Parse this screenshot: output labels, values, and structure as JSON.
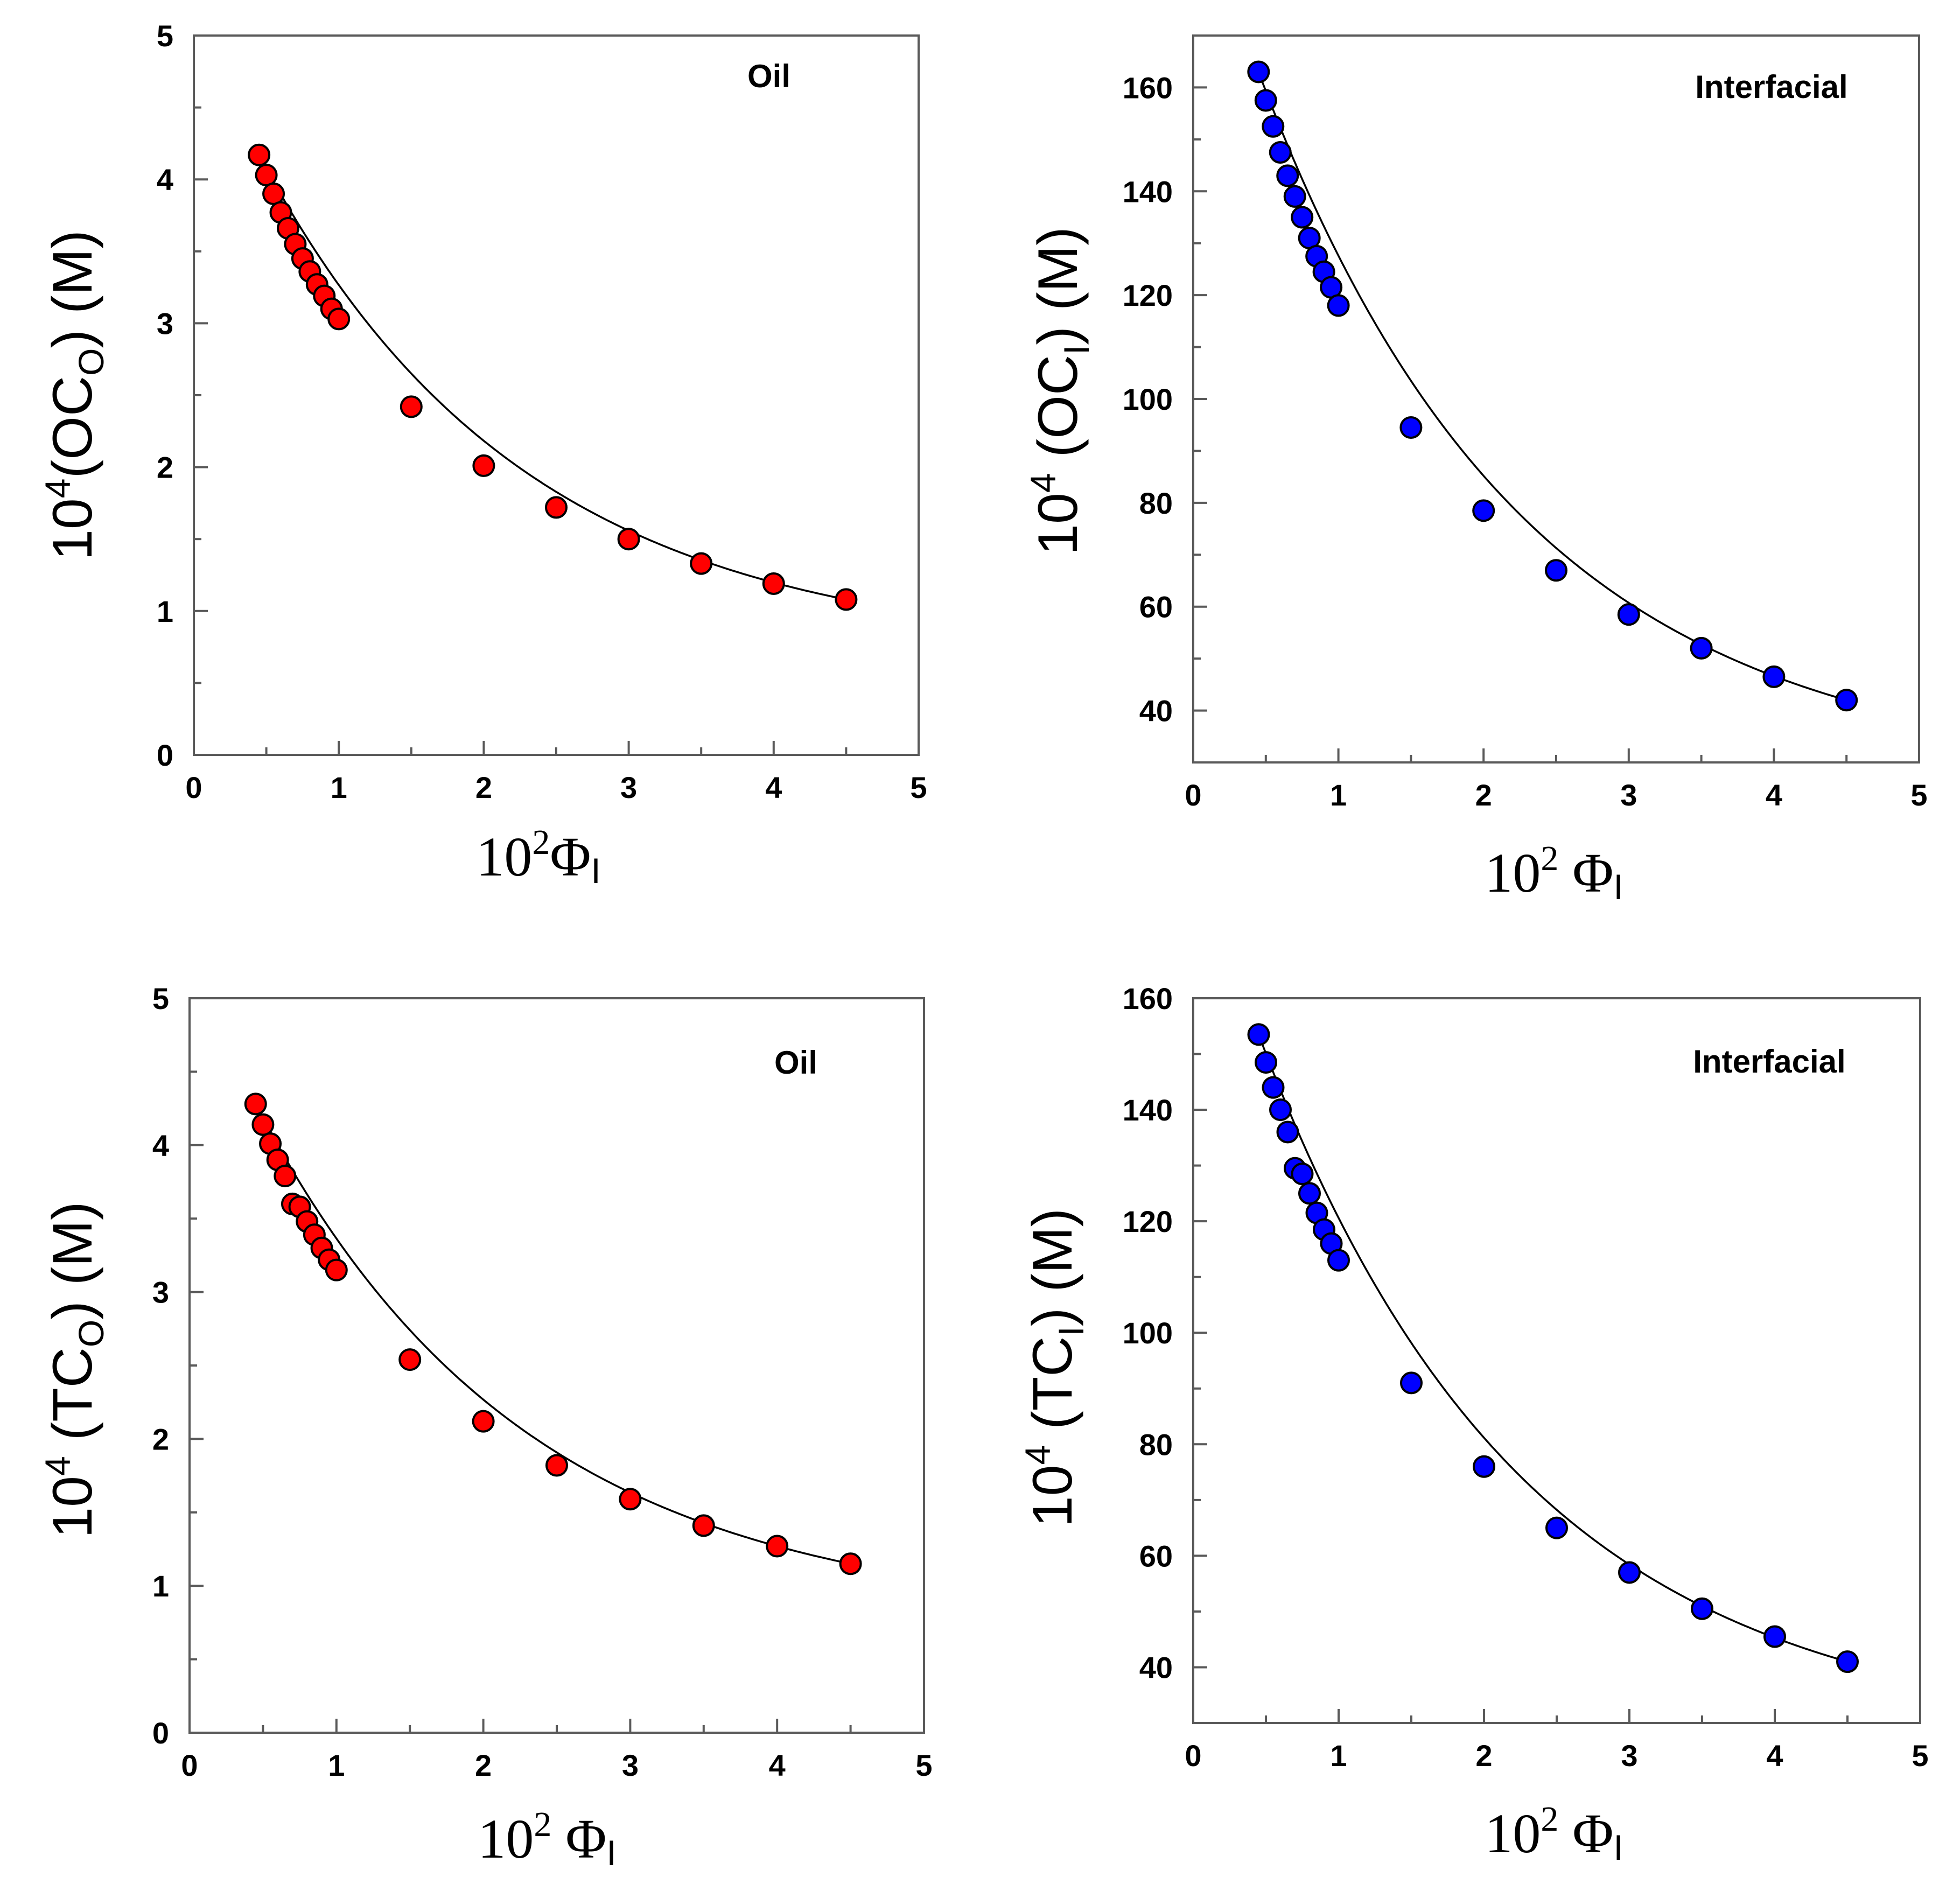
{
  "chart_data": [
    {
      "type": "scatter",
      "panel": "top-left",
      "annotation": "Oil",
      "ylabel_parts": {
        "base": "10",
        "exp": "4",
        "open": "(OC",
        "sub": "O",
        "close": ") (M)"
      },
      "xlabel_parts": {
        "base": "10",
        "exp": "2",
        "symbol": "Φ",
        "sub": "I"
      },
      "xlim": [
        0,
        5
      ],
      "ylim": [
        0,
        5
      ],
      "x_ticks": [
        "0",
        "1",
        "2",
        "3",
        "4",
        "5"
      ],
      "y_ticks": [
        "0",
        "1",
        "2",
        "3",
        "4",
        "5"
      ],
      "marker_color": "#ff0000",
      "series": [
        {
          "name": "data",
          "x": [
            0.45,
            0.5,
            0.55,
            0.6,
            0.65,
            0.7,
            0.75,
            0.8,
            0.85,
            0.9,
            0.95,
            1.0,
            1.5,
            2.0,
            2.5,
            3.0,
            3.5,
            4.0,
            4.5
          ],
          "y": [
            4.17,
            4.03,
            3.9,
            3.77,
            3.66,
            3.55,
            3.45,
            3.36,
            3.27,
            3.19,
            3.1,
            3.03,
            2.42,
            2.01,
            1.72,
            1.5,
            1.33,
            1.19,
            1.08
          ]
        }
      ],
      "fit_curve": {
        "x0": 0.45,
        "x1": 4.5,
        "y0": 4.17,
        "y1": 1.08
      }
    },
    {
      "type": "scatter",
      "panel": "top-right",
      "annotation": "Interfacial",
      "ylabel_parts": {
        "base": "10",
        "exp": "4",
        "open": " (OC",
        "sub": "I",
        "close": ") (M)"
      },
      "xlabel_parts": {
        "base": "10",
        "exp": "2",
        "symbol": " Φ",
        "sub": "I"
      },
      "xlim": [
        0,
        5
      ],
      "ylim": [
        30,
        170
      ],
      "x_ticks": [
        "0",
        "1",
        "2",
        "3",
        "4",
        "5"
      ],
      "y_ticks": [
        "40",
        "60",
        "80",
        "100",
        "120",
        "140",
        "160"
      ],
      "marker_color": "#0000ff",
      "series": [
        {
          "name": "data",
          "x": [
            0.45,
            0.5,
            0.55,
            0.6,
            0.65,
            0.7,
            0.75,
            0.8,
            0.85,
            0.9,
            0.95,
            1.0,
            1.5,
            2.0,
            2.5,
            3.0,
            3.5,
            4.0,
            4.5
          ],
          "y": [
            163,
            157.5,
            152.5,
            147.5,
            143,
            139,
            135,
            131,
            127.5,
            124.5,
            121.5,
            118,
            94.5,
            78.5,
            67,
            58.5,
            52,
            46.5,
            42
          ]
        }
      ],
      "fit_curve": {
        "x0": 0.45,
        "x1": 4.5,
        "y0": 163,
        "y1": 42
      }
    },
    {
      "type": "scatter",
      "panel": "bottom-left",
      "annotation": "Oil",
      "ylabel_parts": {
        "base": "10",
        "exp": "4",
        "open": " (TC",
        "sub": "O",
        "close": ") (M)"
      },
      "xlabel_parts": {
        "base": "10",
        "exp": "2",
        "symbol": " Φ",
        "sub": "I"
      },
      "xlim": [
        0,
        5
      ],
      "ylim": [
        0,
        5
      ],
      "x_ticks": [
        "0",
        "1",
        "2",
        "3",
        "4",
        "5"
      ],
      "y_ticks": [
        "0",
        "1",
        "2",
        "3",
        "4",
        "5"
      ],
      "marker_color": "#ff0000",
      "series": [
        {
          "name": "data",
          "x": [
            0.45,
            0.5,
            0.55,
            0.6,
            0.65,
            0.7,
            0.75,
            0.8,
            0.85,
            0.9,
            0.95,
            1.0,
            1.5,
            2.0,
            2.5,
            3.0,
            3.5,
            4.0,
            4.5
          ],
          "y": [
            4.28,
            4.14,
            4.01,
            3.9,
            3.79,
            3.6,
            3.58,
            3.48,
            3.39,
            3.3,
            3.22,
            3.15,
            2.54,
            2.12,
            1.82,
            1.59,
            1.41,
            1.27,
            1.15
          ]
        }
      ],
      "fit_curve": {
        "x0": 0.45,
        "x1": 4.5,
        "y0": 4.28,
        "y1": 1.15
      }
    },
    {
      "type": "scatter",
      "panel": "bottom-right",
      "annotation": "Interfacial",
      "ylabel_parts": {
        "base": "10",
        "exp": "4",
        "open": " (TC",
        "sub": "I",
        "close": ") (M)"
      },
      "xlabel_parts": {
        "base": "10",
        "exp": "2",
        "symbol": " Φ",
        "sub": "I"
      },
      "xlim": [
        0,
        5
      ],
      "ylim": [
        30,
        160
      ],
      "x_ticks": [
        "0",
        "1",
        "2",
        "3",
        "4",
        "5"
      ],
      "y_ticks": [
        "40",
        "60",
        "80",
        "100",
        "120",
        "140",
        "160"
      ],
      "marker_color": "#0000ff",
      "series": [
        {
          "name": "data",
          "x": [
            0.45,
            0.5,
            0.55,
            0.6,
            0.65,
            0.7,
            0.75,
            0.8,
            0.85,
            0.9,
            0.95,
            1.0,
            1.5,
            2.0,
            2.5,
            3.0,
            3.5,
            4.0,
            4.5
          ],
          "y": [
            153.5,
            148.5,
            144,
            140,
            136,
            129.5,
            128.5,
            125,
            121.5,
            118.5,
            116,
            113,
            91,
            76,
            65,
            57,
            50.5,
            45.5,
            41
          ]
        }
      ],
      "fit_curve": {
        "x0": 0.45,
        "x1": 4.5,
        "y0": 153.5,
        "y1": 41
      }
    }
  ]
}
